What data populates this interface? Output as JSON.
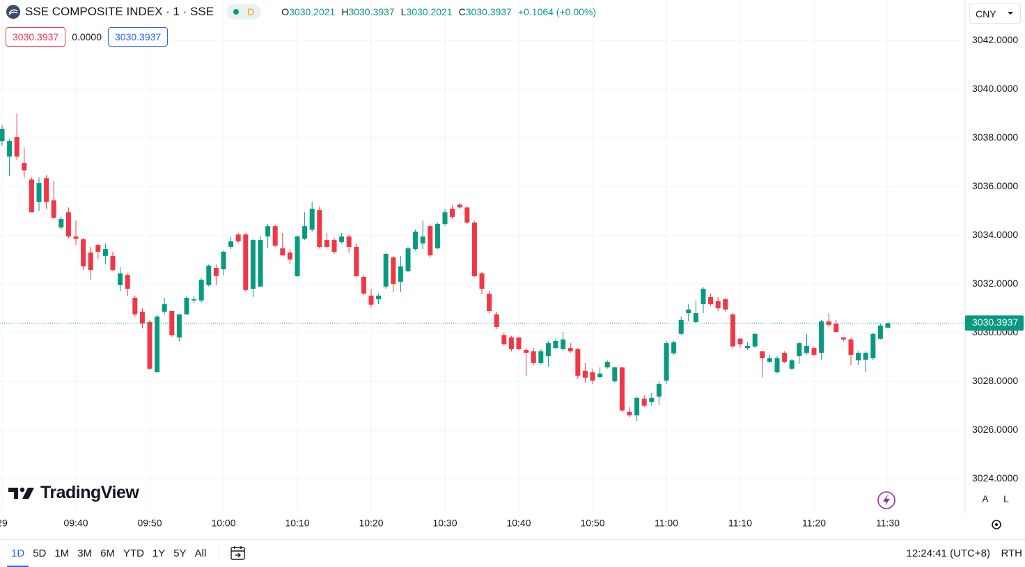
{
  "header": {
    "symbol": "SSE COMPOSITE INDEX · 1 · SSE",
    "badge": "D",
    "ohlc": [
      {
        "key": "O",
        "value": "3030.2021"
      },
      {
        "key": "H",
        "value": "3030.3937"
      },
      {
        "key": "L",
        "value": "3030.2021"
      },
      {
        "key": "C",
        "value": "3030.3937"
      }
    ],
    "change": "+0.1064 (+0.00%)",
    "sell": "3030.3937",
    "spread": "0.0000",
    "buy": "3030.3937",
    "currency": "CNY"
  },
  "chart_data": {
    "type": "candlestick",
    "up_color": "#089981",
    "down_color": "#f23645",
    "grid": true,
    "categories": [
      "29",
      null,
      null,
      null,
      null,
      null,
      null,
      null,
      null,
      null,
      "09:40",
      null,
      null,
      null,
      null,
      null,
      null,
      null,
      null,
      null,
      "09:50",
      null,
      null,
      null,
      null,
      null,
      null,
      null,
      null,
      null,
      "10:00",
      null,
      null,
      null,
      null,
      null,
      null,
      null,
      null,
      null,
      "10:10",
      null,
      null,
      null,
      null,
      null,
      null,
      null,
      null,
      null,
      "10:20",
      null,
      null,
      null,
      null,
      null,
      null,
      null,
      null,
      null,
      "10:30",
      null,
      null,
      null,
      null,
      null,
      null,
      null,
      null,
      null,
      "10:40",
      null,
      null,
      null,
      null,
      null,
      null,
      null,
      null,
      null,
      "10:50",
      null,
      null,
      null,
      null,
      null,
      null,
      null,
      null,
      null,
      "11:00",
      null,
      null,
      null,
      null,
      null,
      null,
      null,
      null,
      null,
      "11:10",
      null,
      null,
      null,
      null,
      null,
      null,
      null,
      null,
      null,
      "11:20",
      null,
      null,
      null,
      null,
      null,
      null,
      null,
      null,
      null,
      "11:30"
    ],
    "open": [
      3037.86,
      3037.23,
      3038.03,
      3036.97,
      3036.29,
      3035.37,
      3036.34,
      3035.43,
      3034.32,
      3034.94,
      3033.95,
      3033.83,
      3033.29,
      3033.6,
      3033.15,
      3033.15,
      3031.95,
      3032.37,
      3031.43,
      3030.86,
      3030.43,
      3028.37,
      3030.86,
      3030.89,
      3029.8,
      3030.75,
      3031.32,
      3031.32,
      3031.95,
      3032.66,
      3032.6,
      3033.52,
      3034.03,
      3034.03,
      3031.8,
      3031.89,
      3033.95,
      3034.37,
      3033.46,
      3033.29,
      3032.32,
      3033.86,
      3034.23,
      3035.03,
      3033.8,
      3033.8,
      3033.72,
      3033.95,
      3033.52,
      3032.29,
      3031.52,
      3031.37,
      3031.89,
      3033.09,
      3032.09,
      3032.52,
      3033.43,
      3033.66,
      3034.37,
      3033.46,
      3034.46,
      3035.09,
      3035.26,
      3035.14,
      3034.52,
      3032.43,
      3031.6,
      3030.75,
      3029.89,
      3029.8,
      3029.8,
      3029.29,
      3029.23,
      3028.75,
      3029.03,
      3029.37,
      3029.32,
      3029.37,
      3029.32,
      3028.43,
      3028.37,
      3028.17,
      3028.57,
      3028.0,
      3028.57,
      3026.75,
      3026.6,
      3027.29,
      3027.15,
      3027.37,
      3028.03,
      3029.15,
      3029.95,
      3030.8,
      3030.43,
      3031.17,
      3031.46,
      3031.29,
      3031.37,
      3030.75,
      3029.75,
      3029.37,
      3029.43,
      3029.23,
      3028.8,
      3028.37,
      3029.17,
      3028.52,
      3029.03,
      3029.17,
      3029.37,
      3029.17,
      3030.46,
      3030.37,
      3029.8,
      3029.72,
      3028.86,
      3028.89,
      3028.95,
      3029.75,
      3030.2021
    ],
    "high": [
      3038.52,
      3037.94,
      3039.0,
      3037.6,
      3036.37,
      3036.37,
      3036.46,
      3036.23,
      3034.75,
      3035.14,
      3034.6,
      3033.89,
      3033.52,
      3033.66,
      3033.66,
      3033.32,
      3032.69,
      3032.43,
      3031.52,
      3031.0,
      3030.52,
      3030.75,
      3031.43,
      3030.89,
      3030.75,
      3031.52,
      3031.52,
      3032.23,
      3032.8,
      3032.8,
      3033.37,
      3033.95,
      3034.09,
      3034.09,
      3033.86,
      3033.95,
      3034.46,
      3034.43,
      3034.09,
      3033.43,
      3034.0,
      3034.94,
      3035.37,
      3035.17,
      3034.09,
      3033.89,
      3034.09,
      3034.03,
      3033.66,
      3032.37,
      3031.8,
      3031.6,
      3033.29,
      3033.15,
      3033.15,
      3033.52,
      3034.23,
      3034.6,
      3034.43,
      3034.52,
      3035.09,
      3035.23,
      3035.32,
      3035.17,
      3034.57,
      3032.49,
      3031.72,
      3030.86,
      3030.0,
      3029.86,
      3029.8,
      3029.37,
      3029.37,
      3029.32,
      3029.66,
      3029.75,
      3030.03,
      3029.57,
      3029.37,
      3028.75,
      3028.52,
      3028.57,
      3028.86,
      3028.6,
      3028.57,
      3026.94,
      3027.37,
      3027.43,
      3027.52,
      3028.0,
      3029.66,
      3029.66,
      3030.66,
      3031.17,
      3031.32,
      3031.86,
      3031.6,
      3031.46,
      3031.43,
      3030.8,
      3029.8,
      3029.6,
      3030.0,
      3029.23,
      3029.09,
      3029.03,
      3029.23,
      3028.92,
      3029.6,
      3029.95,
      3029.43,
      3030.52,
      3030.8,
      3030.52,
      3029.8,
      3029.8,
      3029.23,
      3029.23,
      3030.0,
      3030.37,
      3030.3937
    ],
    "low": [
      3037.66,
      3036.43,
      3037.09,
      3036.37,
      3034.94,
      3035.0,
      3035.09,
      3034.66,
      3034.23,
      3033.89,
      3033.6,
      3032.57,
      3032.17,
      3033.03,
      3032.8,
      3032.52,
      3031.72,
      3031.52,
      3030.66,
      3030.17,
      3028.46,
      3028.37,
      3030.75,
      3029.83,
      3029.63,
      3030.75,
      3031.2,
      3031.23,
      3031.89,
      3031.95,
      3032.37,
      3033.43,
      3033.69,
      3031.69,
      3031.46,
      3031.89,
      3033.46,
      3033.52,
      3033.15,
      3032.8,
      3032.29,
      3033.8,
      3034.15,
      3033.46,
      3033.46,
      3033.23,
      3033.66,
      3033.29,
      3032.29,
      3031.55,
      3031.03,
      3031.17,
      3031.8,
      3031.66,
      3031.66,
      3032.49,
      3033.37,
      3033.43,
      3033.09,
      3033.43,
      3034.37,
      3034.66,
      3035.09,
      3034.46,
      3032.29,
      3031.57,
      3030.8,
      3030.15,
      3029.46,
      3029.23,
      3029.29,
      3028.23,
      3028.66,
      3028.69,
      3028.6,
      3029.32,
      3029.23,
      3029.17,
      3028.09,
      3027.95,
      3027.89,
      3028.15,
      3028.52,
      3027.95,
      3026.75,
      3026.52,
      3026.37,
      3026.94,
      3027.0,
      3027.03,
      3027.89,
      3029.09,
      3029.89,
      3030.46,
      3030.37,
      3030.8,
      3031.09,
      3030.89,
      3030.86,
      3029.37,
      3029.37,
      3029.29,
      3029.37,
      3028.17,
      3028.75,
      3028.32,
      3028.75,
      3028.46,
      3028.72,
      3029.09,
      3029.03,
      3028.89,
      3030.23,
      3030.0,
      3029.66,
      3028.66,
      3028.66,
      3028.37,
      3028.86,
      3029.72,
      3030.2021
    ],
    "close": [
      3038.37,
      3037.86,
      3037.23,
      3036.66,
      3034.94,
      3036.14,
      3035.37,
      3034.72,
      3034.66,
      3033.95,
      3033.86,
      3032.72,
      3032.57,
      3033.32,
      3033.43,
      3032.57,
      3032.43,
      3031.8,
      3030.75,
      3030.37,
      3028.52,
      3030.66,
      3031.17,
      3029.89,
      3030.75,
      3031.43,
      3031.37,
      3032.17,
      3032.75,
      3032.32,
      3033.32,
      3033.75,
      3033.75,
      3031.75,
      3033.8,
      3033.8,
      3034.37,
      3033.57,
      3033.17,
      3033.0,
      3033.95,
      3034.37,
      3035.09,
      3033.52,
      3033.52,
      3033.32,
      3033.95,
      3033.52,
      3032.32,
      3031.6,
      3031.15,
      3031.52,
      3033.23,
      3032.0,
      3032.72,
      3033.46,
      3034.15,
      3033.95,
      3033.17,
      3034.46,
      3034.94,
      3034.75,
      3035.14,
      3034.52,
      3032.32,
      3031.8,
      3030.89,
      3030.23,
      3029.52,
      3029.32,
      3029.32,
      3029.17,
      3028.75,
      3029.23,
      3029.57,
      3029.66,
      3029.72,
      3029.23,
      3028.23,
      3028.15,
      3028.03,
      3028.32,
      3028.8,
      3028.57,
      3026.8,
      3026.6,
      3027.32,
      3027.0,
      3027.32,
      3027.89,
      3029.57,
      3029.6,
      3030.52,
      3030.95,
      3030.8,
      3031.8,
      3031.17,
      3031.0,
      3030.95,
      3029.43,
      3029.52,
      3029.46,
      3029.95,
      3028.95,
      3028.95,
      3028.95,
      3028.8,
      3028.86,
      3029.57,
      3029.46,
      3029.09,
      3030.46,
      3030.32,
      3030.03,
      3029.72,
      3029.09,
      3029.17,
      3029.17,
      3029.95,
      3030.29,
      3030.3937
    ],
    "ylim": [
      3022.66,
      3043.66
    ],
    "yticks": [
      {
        "value": 3024,
        "label": "3024.0000"
      },
      {
        "value": 3026,
        "label": "3026.0000"
      },
      {
        "value": 3028,
        "label": "3028.0000"
      },
      {
        "value": 3030,
        "label": "3030.0000"
      },
      {
        "value": 3032,
        "label": "3032.0000"
      },
      {
        "value": 3034,
        "label": "3034.0000"
      },
      {
        "value": 3036,
        "label": "3036.0000"
      },
      {
        "value": 3038,
        "label": "3038.0000"
      },
      {
        "value": 3040,
        "label": "3040.0000"
      },
      {
        "value": 3042,
        "label": "3042.0000"
      }
    ]
  },
  "watermark": "TradingView",
  "scale_buttons": [
    "A",
    "L"
  ],
  "footer": {
    "ranges": [
      "1D",
      "5D",
      "1M",
      "3M",
      "6M",
      "YTD",
      "1Y",
      "5Y",
      "All"
    ],
    "time": "12:24:41 (UTC+8)",
    "session": "RTH"
  }
}
